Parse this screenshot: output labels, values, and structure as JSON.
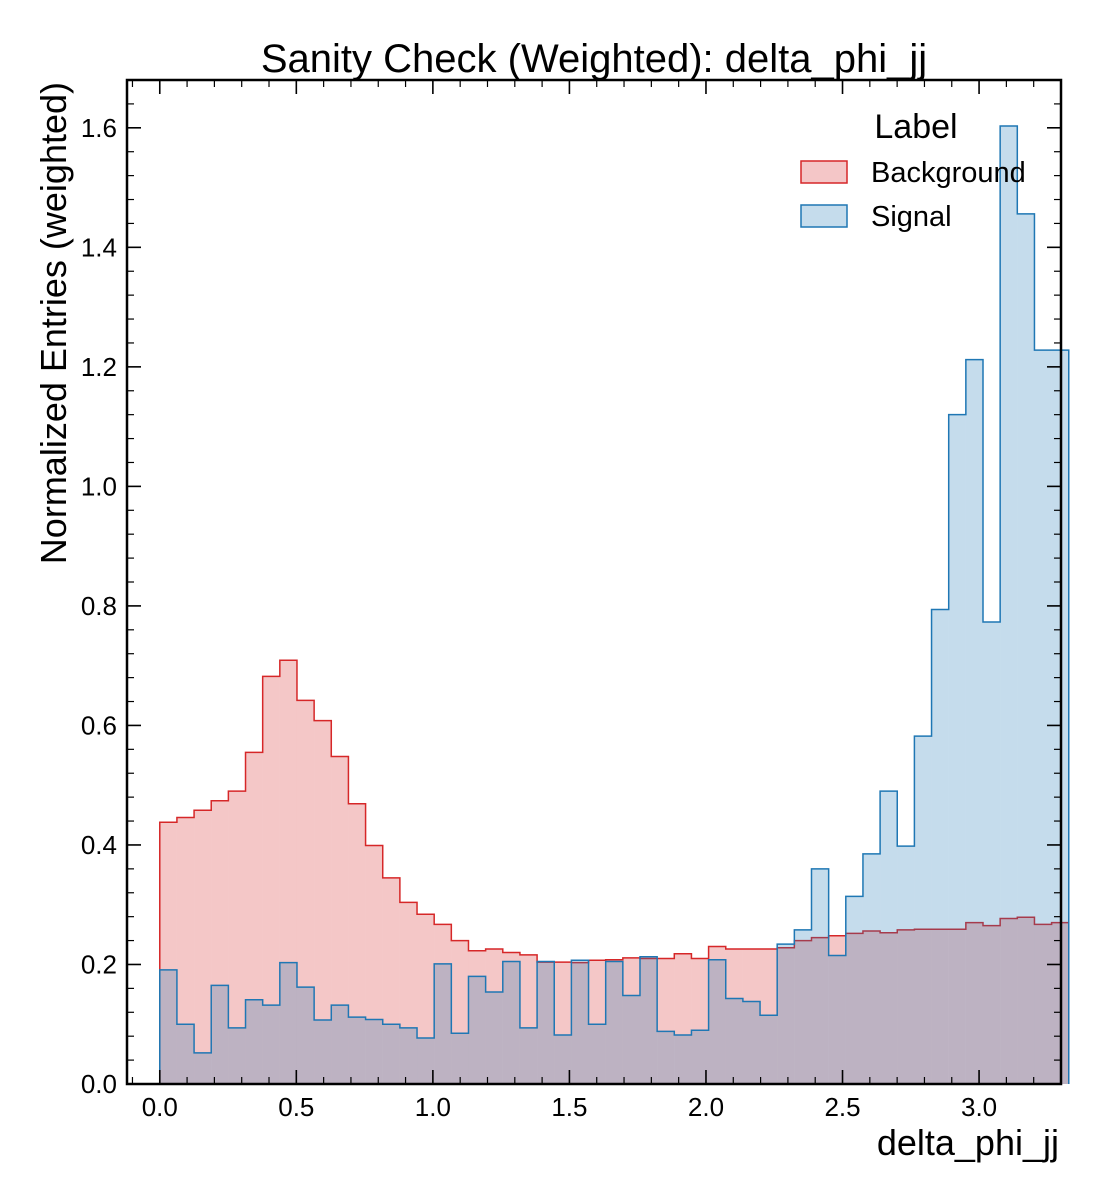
{
  "chart_data": {
    "type": "histogram",
    "title": "Sanity Check (Weighted): delta_phi_jj",
    "xlabel": "delta_phi_jj",
    "ylabel": "Normalized Entries (weighted)",
    "xlim": [
      -0.12,
      3.3
    ],
    "ylim": [
      0.0,
      1.68
    ],
    "xticks": [
      "0.0",
      "0.5",
      "1.0",
      "1.5",
      "2.0",
      "2.5",
      "3.0"
    ],
    "yticks": [
      "0.0",
      "0.2",
      "0.4",
      "0.6",
      "0.8",
      "1.0",
      "1.2",
      "1.4",
      "1.6"
    ],
    "grid": false,
    "legend": {
      "title": "Label",
      "position": "top-right"
    },
    "bin_start": 0.0,
    "bin_width": 0.0628,
    "series": [
      {
        "name": "Background",
        "color": "#d62728",
        "fill": "#f4c6c7",
        "values": [
          0.438,
          0.446,
          0.458,
          0.474,
          0.49,
          0.555,
          0.682,
          0.709,
          0.642,
          0.608,
          0.548,
          0.469,
          0.399,
          0.345,
          0.304,
          0.284,
          0.267,
          0.24,
          0.223,
          0.226,
          0.22,
          0.216,
          0.204,
          0.204,
          0.203,
          0.207,
          0.208,
          0.211,
          0.21,
          0.21,
          0.218,
          0.21,
          0.23,
          0.226,
          0.226,
          0.226,
          0.228,
          0.24,
          0.245,
          0.248,
          0.252,
          0.256,
          0.253,
          0.258,
          0.259,
          0.259,
          0.259,
          0.27,
          0.265,
          0.277,
          0.279,
          0.267,
          0.27
        ]
      },
      {
        "name": "Signal",
        "color": "#1f77b4",
        "fill": "#c5dcec",
        "values": [
          0.191,
          0.1,
          0.052,
          0.165,
          0.094,
          0.141,
          0.132,
          0.203,
          0.162,
          0.107,
          0.132,
          0.112,
          0.108,
          0.1,
          0.094,
          0.077,
          0.201,
          0.085,
          0.18,
          0.154,
          0.205,
          0.094,
          0.205,
          0.082,
          0.207,
          0.1,
          0.205,
          0.148,
          0.213,
          0.088,
          0.082,
          0.09,
          0.208,
          0.143,
          0.138,
          0.115,
          0.234,
          0.258,
          0.36,
          0.215,
          0.314,
          0.385,
          0.49,
          0.398,
          0.582,
          0.794,
          1.12,
          1.212,
          0.773,
          1.603,
          1.456,
          1.228,
          1.228
        ]
      }
    ]
  }
}
